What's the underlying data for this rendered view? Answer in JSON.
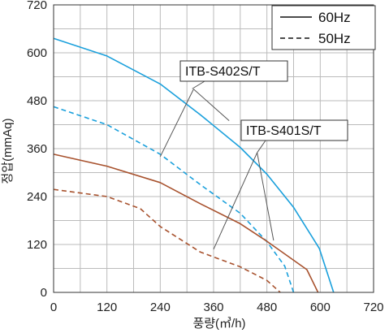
{
  "chart_data": {
    "type": "line",
    "xlabel": "풍량(㎥/h)",
    "ylabel": "정압(mmAq)",
    "xlim": [
      0,
      720
    ],
    "ylim": [
      0,
      720
    ],
    "x_ticks": [
      "0",
      "120",
      "240",
      "360",
      "480",
      "600",
      "720"
    ],
    "y_ticks": [
      "0",
      "120",
      "240",
      "360",
      "480",
      "600",
      "720"
    ],
    "grid": true,
    "legend_position": "top-right",
    "legend": [
      {
        "label": "60Hz",
        "style": "solid"
      },
      {
        "label": "50Hz",
        "style": "dashed"
      }
    ],
    "series": [
      {
        "model": "ITB-S402S/T",
        "freq": "60Hz",
        "style": "solid",
        "color": "#1aa0dc",
        "points": [
          [
            0,
            636
          ],
          [
            120,
            592
          ],
          [
            240,
            522
          ],
          [
            330,
            445
          ],
          [
            420,
            363
          ],
          [
            480,
            296
          ],
          [
            540,
            213
          ],
          [
            598,
            110
          ],
          [
            630,
            0
          ]
        ]
      },
      {
        "model": "ITB-S402S/T",
        "freq": "50Hz",
        "style": "dashed",
        "color": "#1aa0dc",
        "points": [
          [
            0,
            465
          ],
          [
            120,
            420
          ],
          [
            240,
            346
          ],
          [
            330,
            270
          ],
          [
            420,
            198
          ],
          [
            480,
            127
          ],
          [
            520,
            66
          ],
          [
            540,
            0
          ]
        ]
      },
      {
        "model": "ITB-S401S/T",
        "freq": "60Hz",
        "style": "solid",
        "color": "#a8522e",
        "points": [
          [
            0,
            346
          ],
          [
            120,
            316
          ],
          [
            240,
            275
          ],
          [
            330,
            222
          ],
          [
            420,
            172
          ],
          [
            480,
            128
          ],
          [
            570,
            57
          ],
          [
            595,
            0
          ]
        ]
      },
      {
        "model": "ITB-S401S/T",
        "freq": "50Hz",
        "style": "dashed",
        "color": "#a8522e",
        "points": [
          [
            0,
            258
          ],
          [
            120,
            240
          ],
          [
            195,
            210
          ],
          [
            240,
            165
          ],
          [
            330,
            101
          ],
          [
            420,
            64
          ],
          [
            480,
            30
          ],
          [
            510,
            0
          ]
        ]
      }
    ],
    "annotations": [
      {
        "text": "ITB-S402S/T"
      },
      {
        "text": "ITB-S401S/T"
      }
    ]
  }
}
